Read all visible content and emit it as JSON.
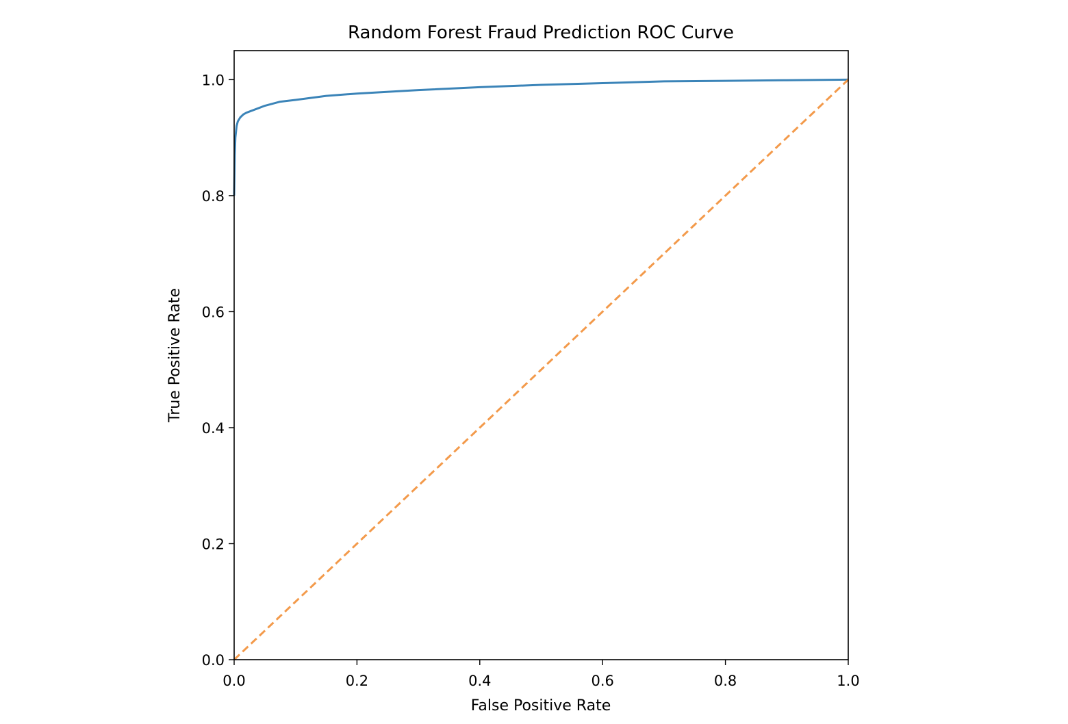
{
  "chart_data": {
    "type": "line",
    "title": "Random Forest Fraud Prediction ROC Curve",
    "xlabel": "False Positive Rate",
    "ylabel": "True Positive Rate",
    "xlim": [
      0.0,
      1.0
    ],
    "ylim": [
      0.0,
      1.05
    ],
    "x_ticks": [
      "0.0",
      "0.2",
      "0.4",
      "0.6",
      "0.8",
      "1.0"
    ],
    "y_ticks": [
      "0.0",
      "0.2",
      "0.4",
      "0.6",
      "0.8",
      "1.0"
    ],
    "grid": false,
    "legend": "none",
    "series": [
      {
        "style": "solid",
        "color": "#3b84b8",
        "x": [
          0.0,
          0.001,
          0.002,
          0.004,
          0.006,
          0.01,
          0.015,
          0.02,
          0.03,
          0.05,
          0.075,
          0.1,
          0.15,
          0.2,
          0.3,
          0.4,
          0.5,
          0.6,
          0.7,
          0.8,
          0.9,
          1.0
        ],
        "y": [
          0.8,
          0.87,
          0.9,
          0.92,
          0.928,
          0.935,
          0.94,
          0.943,
          0.947,
          0.955,
          0.962,
          0.965,
          0.972,
          0.976,
          0.982,
          0.987,
          0.991,
          0.994,
          0.997,
          0.998,
          0.999,
          1.0
        ]
      },
      {
        "style": "dashed",
        "color": "#f39a4b",
        "x": [
          0.0,
          1.0
        ],
        "y": [
          0.0,
          1.0
        ]
      }
    ]
  }
}
